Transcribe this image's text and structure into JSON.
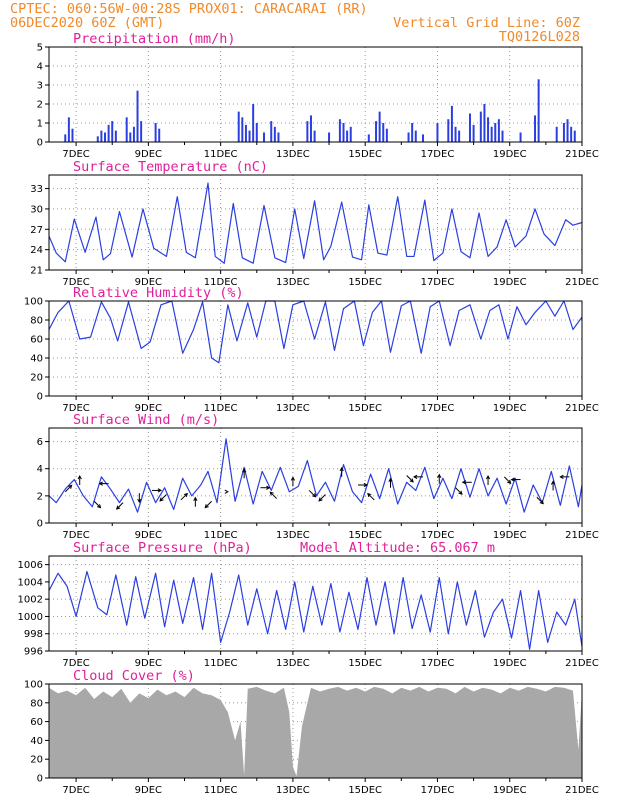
{
  "header": {
    "line1_left": "CPTEC:  060:56W-00:28S  PROX01: CARACARAI (RR)",
    "line2_left": "06DEC2020 60Z (GMT)",
    "line2_right": "Vertical Grid Line: 60Z",
    "line3_right": "TQ0126L028"
  },
  "colors": {
    "header": "#f08a2c",
    "panel_title": "#e0209a",
    "series": "#2b3fe0",
    "cloud_fill": "#a8a8a8",
    "grid": "#9a9a9a"
  },
  "x_axis": {
    "days_range": [
      6.25,
      21.0
    ],
    "tick_days": [
      7,
      9,
      11,
      13,
      15,
      17,
      19,
      21
    ],
    "tick_labels": [
      "7DEC",
      "9DEC",
      "11DEC",
      "13DEC",
      "15DEC",
      "17DEC",
      "19DEC",
      "21DEC"
    ]
  },
  "chart_data": [
    {
      "id": "precip",
      "type": "bar",
      "title": "Precipitation (mm/h)",
      "ylim": [
        0,
        5
      ],
      "yticks": [
        0,
        1,
        2,
        3,
        4,
        5
      ],
      "x_unit": "day of December 2020",
      "x": [
        6.7,
        6.8,
        6.9,
        7.6,
        7.7,
        7.8,
        7.9,
        8.0,
        8.1,
        8.4,
        8.5,
        8.6,
        8.7,
        8.8,
        9.2,
        9.3,
        11.5,
        11.6,
        11.7,
        11.8,
        11.9,
        12.0,
        12.2,
        12.4,
        12.5,
        12.6,
        13.4,
        13.5,
        13.6,
        14.0,
        14.3,
        14.4,
        14.5,
        14.6,
        15.1,
        15.3,
        15.4,
        15.5,
        15.6,
        16.2,
        16.3,
        16.4,
        16.6,
        17.0,
        17.3,
        17.4,
        17.5,
        17.6,
        17.9,
        18.0,
        18.2,
        18.3,
        18.4,
        18.5,
        18.6,
        18.7,
        18.8,
        19.3,
        19.7,
        19.8,
        20.3,
        20.5,
        20.6,
        20.7,
        20.8
      ],
      "values": [
        0.4,
        1.3,
        0.7,
        0.3,
        0.6,
        0.5,
        0.9,
        1.1,
        0.6,
        1.3,
        0.5,
        0.8,
        2.7,
        1.1,
        1.0,
        0.7,
        1.6,
        1.3,
        0.9,
        0.6,
        2.0,
        1.0,
        0.5,
        1.1,
        0.8,
        0.5,
        1.1,
        1.4,
        0.6,
        0.5,
        1.2,
        1.0,
        0.6,
        0.8,
        0.4,
        1.1,
        1.6,
        1.0,
        0.7,
        0.5,
        1.0,
        0.6,
        0.4,
        1.0,
        1.2,
        1.9,
        0.8,
        0.6,
        1.5,
        0.9,
        1.6,
        2.0,
        1.3,
        0.8,
        1.0,
        1.2,
        0.6,
        0.5,
        1.4,
        3.3,
        0.8,
        1.0,
        1.2,
        0.8,
        0.6
      ]
    },
    {
      "id": "temp",
      "type": "line",
      "title": "Surface Temperature (nC)",
      "ylim": [
        21,
        35
      ],
      "yticks": [
        21,
        24,
        27,
        30,
        33
      ],
      "x_unit": "day of December 2020",
      "x": [
        6.25,
        6.45,
        6.7,
        6.95,
        7.25,
        7.55,
        7.75,
        7.95,
        8.2,
        8.55,
        8.85,
        9.15,
        9.5,
        9.8,
        10.05,
        10.3,
        10.65,
        10.85,
        11.1,
        11.35,
        11.6,
        11.9,
        12.2,
        12.5,
        12.8,
        13.05,
        13.3,
        13.6,
        13.85,
        14.05,
        14.35,
        14.65,
        14.9,
        15.1,
        15.35,
        15.6,
        15.9,
        16.15,
        16.35,
        16.65,
        16.9,
        17.15,
        17.4,
        17.65,
        17.9,
        18.15,
        18.4,
        18.65,
        18.9,
        19.15,
        19.45,
        19.7,
        19.95,
        20.25,
        20.55,
        20.75,
        21.0
      ],
      "values": [
        26,
        23.5,
        22.2,
        28.5,
        23.6,
        28.8,
        22.5,
        23.4,
        29.6,
        22.9,
        30.0,
        24.2,
        23.0,
        31.8,
        23.6,
        22.8,
        33.8,
        23.0,
        22.0,
        30.8,
        22.8,
        22.0,
        30.5,
        22.8,
        22.1,
        30.0,
        22.7,
        31.2,
        22.5,
        24.5,
        31.0,
        22.9,
        22.5,
        30.6,
        23.5,
        23.2,
        31.8,
        23.0,
        23.0,
        31.3,
        22.4,
        23.5,
        30.0,
        23.7,
        22.8,
        29.4,
        23.0,
        24.4,
        28.4,
        24.4,
        26.0,
        30.0,
        26.3,
        24.6,
        28.4,
        27.6,
        28.0
      ]
    },
    {
      "id": "rh",
      "type": "line",
      "title": "Relative Humidity (%)",
      "ylim": [
        0,
        100
      ],
      "yticks": [
        0,
        20,
        40,
        60,
        80,
        100
      ],
      "x_unit": "day of December 2020",
      "x": [
        6.25,
        6.5,
        6.8,
        7.1,
        7.4,
        7.7,
        7.95,
        8.15,
        8.45,
        8.8,
        9.05,
        9.35,
        9.65,
        9.95,
        10.25,
        10.5,
        10.75,
        10.95,
        11.2,
        11.45,
        11.75,
        12.0,
        12.25,
        12.5,
        12.75,
        13.0,
        13.3,
        13.6,
        13.9,
        14.15,
        14.4,
        14.7,
        14.95,
        15.2,
        15.45,
        15.7,
        16.0,
        16.25,
        16.55,
        16.8,
        17.05,
        17.35,
        17.6,
        17.9,
        18.2,
        18.45,
        18.7,
        18.95,
        19.2,
        19.45,
        19.7,
        20.0,
        20.25,
        20.5,
        20.75,
        21.0
      ],
      "values": [
        70,
        88,
        100,
        60,
        62,
        99,
        82,
        58,
        99,
        50,
        57,
        96,
        100,
        45,
        70,
        99,
        40,
        35,
        96,
        58,
        98,
        62,
        100,
        100,
        50,
        96,
        100,
        60,
        99,
        48,
        92,
        100,
        53,
        88,
        100,
        46,
        95,
        100,
        45,
        94,
        100,
        53,
        90,
        96,
        60,
        90,
        96,
        60,
        94,
        75,
        88,
        100,
        84,
        100,
        70,
        83
      ]
    },
    {
      "id": "wind",
      "type": "line",
      "title": "Surface Wind (m/s)",
      "ylim": [
        0,
        7
      ],
      "yticks": [
        0,
        2,
        4,
        6
      ],
      "x_unit": "day of December 2020",
      "x": [
        6.25,
        6.45,
        6.7,
        6.95,
        7.2,
        7.45,
        7.7,
        7.95,
        8.2,
        8.45,
        8.7,
        8.95,
        9.2,
        9.45,
        9.7,
        9.95,
        10.2,
        10.45,
        10.65,
        10.9,
        11.15,
        11.4,
        11.65,
        11.9,
        12.15,
        12.4,
        12.65,
        12.9,
        13.15,
        13.4,
        13.65,
        13.9,
        14.15,
        14.4,
        14.65,
        14.9,
        15.15,
        15.4,
        15.65,
        15.9,
        16.15,
        16.4,
        16.65,
        16.9,
        17.15,
        17.4,
        17.65,
        17.9,
        18.15,
        18.4,
        18.65,
        18.9,
        19.15,
        19.4,
        19.65,
        19.9,
        20.15,
        20.4,
        20.65,
        20.9,
        21.0
      ],
      "values": [
        2.0,
        1.5,
        2.5,
        3.2,
        2.0,
        1.2,
        3.4,
        2.5,
        1.5,
        2.5,
        0.8,
        3.0,
        1.5,
        2.6,
        1.0,
        3.3,
        2.0,
        2.8,
        3.8,
        1.5,
        6.2,
        1.6,
        4.1,
        1.4,
        3.8,
        2.4,
        4.1,
        2.3,
        2.7,
        4.6,
        2.0,
        3.0,
        1.6,
        4.3,
        2.3,
        1.5,
        3.6,
        1.8,
        4.0,
        1.4,
        3.0,
        2.4,
        4.1,
        1.8,
        3.3,
        1.8,
        4.0,
        1.9,
        4.0,
        2.0,
        3.3,
        1.4,
        3.3,
        0.8,
        2.8,
        1.5,
        3.8,
        1.3,
        4.2,
        1.2,
        2.8
      ],
      "arrows": {
        "x": [
          6.7,
          7.1,
          7.5,
          7.9,
          8.3,
          8.75,
          9.1,
          9.5,
          9.9,
          10.3,
          10.75,
          11.2,
          11.65,
          12.1,
          12.55,
          13.0,
          13.45,
          13.9,
          14.35,
          14.8,
          15.25,
          15.7,
          16.15,
          16.6,
          17.05,
          17.5,
          17.95,
          18.4,
          18.85,
          19.3,
          19.75,
          20.2,
          20.65
        ],
        "y": [
          2.3,
          2.8,
          1.6,
          2.9,
          1.5,
          2.2,
          2.4,
          2.1,
          1.7,
          1.2,
          1.6,
          2.3,
          3.3,
          2.6,
          1.8,
          2.7,
          2.4,
          2.1,
          3.4,
          2.8,
          1.7,
          2.6,
          3.5,
          3.4,
          2.9,
          2.6,
          3.0,
          2.8,
          3.4,
          3.2,
          1.9,
          2.4,
          3.4
        ],
        "u": [
          1,
          0,
          1,
          -1,
          -1,
          0,
          1,
          -1,
          1,
          0,
          -1,
          0,
          0,
          1,
          -1,
          0,
          1,
          -1,
          0,
          1,
          -1,
          0,
          1,
          -1,
          0,
          1,
          -1,
          0,
          1,
          -1,
          1,
          0,
          -1
        ],
        "v": [
          1,
          1,
          -1,
          0,
          -1,
          -1,
          0,
          -1,
          1,
          1,
          -1,
          0,
          1,
          0,
          1,
          1,
          -1,
          -1,
          1,
          0,
          1,
          1,
          -1,
          0,
          1,
          -1,
          0,
          1,
          -1,
          0,
          -1,
          1,
          0
        ]
      }
    },
    {
      "id": "pressure",
      "type": "line",
      "title": "Surface Pressure (hPa)",
      "annotation": "Model Altitude: 65.067 m",
      "ylim": [
        996,
        1007
      ],
      "yticks": [
        996,
        998,
        1000,
        1002,
        1004,
        1006
      ],
      "x_unit": "day of December 2020",
      "x": [
        6.25,
        6.5,
        6.75,
        7.0,
        7.3,
        7.6,
        7.85,
        8.1,
        8.4,
        8.65,
        8.9,
        9.2,
        9.45,
        9.7,
        9.95,
        10.25,
        10.5,
        10.75,
        11.0,
        11.25,
        11.5,
        11.75,
        12.0,
        12.3,
        12.55,
        12.8,
        13.05,
        13.3,
        13.55,
        13.8,
        14.05,
        14.3,
        14.55,
        14.8,
        15.05,
        15.3,
        15.55,
        15.8,
        16.05,
        16.3,
        16.55,
        16.8,
        17.05,
        17.3,
        17.55,
        17.8,
        18.05,
        18.3,
        18.55,
        18.8,
        19.05,
        19.3,
        19.55,
        19.8,
        20.05,
        20.3,
        20.55,
        20.8,
        21.0
      ],
      "values": [
        1003.0,
        1005.0,
        1003.5,
        1000.0,
        1005.2,
        1001.0,
        1000.2,
        1004.8,
        999.0,
        1004.6,
        999.8,
        1005.0,
        998.8,
        1004.2,
        999.2,
        1004.5,
        998.5,
        1005.0,
        997.0,
        1000.5,
        1004.8,
        999.0,
        1003.2,
        998.0,
        1003.0,
        998.5,
        1004.0,
        998.2,
        1003.5,
        999.0,
        1003.8,
        998.2,
        1002.8,
        998.5,
        1004.5,
        999.0,
        1004.0,
        998.0,
        1004.5,
        998.6,
        1002.5,
        998.2,
        1004.5,
        998.0,
        1004.0,
        999.0,
        1003.0,
        997.6,
        1000.5,
        1002.0,
        997.5,
        1003.0,
        996.2,
        1003.0,
        997.0,
        1000.5,
        999.0,
        1002.0,
        996.5
      ]
    },
    {
      "id": "cloud",
      "type": "area",
      "title": "Cloud Cover (%)",
      "ylim": [
        0,
        100
      ],
      "yticks": [
        0,
        20,
        40,
        60,
        80,
        100
      ],
      "x_unit": "day of December 2020",
      "x": [
        6.25,
        6.5,
        6.75,
        7.0,
        7.25,
        7.5,
        7.75,
        8.0,
        8.25,
        8.5,
        8.75,
        9.0,
        9.25,
        9.5,
        9.75,
        10.0,
        10.25,
        10.5,
        10.75,
        11.0,
        11.2,
        11.4,
        11.55,
        11.65,
        11.75,
        12.0,
        12.25,
        12.5,
        12.75,
        12.9,
        13.0,
        13.1,
        13.25,
        13.5,
        13.75,
        14.0,
        14.25,
        14.5,
        14.75,
        15.0,
        15.25,
        15.5,
        15.75,
        16.0,
        16.25,
        16.5,
        16.75,
        17.0,
        17.25,
        17.5,
        17.75,
        18.0,
        18.25,
        18.5,
        18.75,
        19.0,
        19.25,
        19.5,
        19.75,
        20.0,
        20.25,
        20.5,
        20.75,
        20.9,
        21.0
      ],
      "values": [
        96,
        90,
        93,
        88,
        96,
        84,
        92,
        86,
        95,
        80,
        90,
        85,
        94,
        88,
        92,
        86,
        96,
        90,
        88,
        83,
        70,
        40,
        60,
        3,
        95,
        97,
        93,
        90,
        96,
        70,
        12,
        2,
        55,
        96,
        92,
        95,
        97,
        93,
        96,
        92,
        97,
        95,
        90,
        96,
        93,
        97,
        92,
        96,
        95,
        90,
        97,
        92,
        96,
        94,
        90,
        96,
        93,
        97,
        95,
        92,
        97,
        96,
        93,
        30,
        92
      ]
    }
  ]
}
